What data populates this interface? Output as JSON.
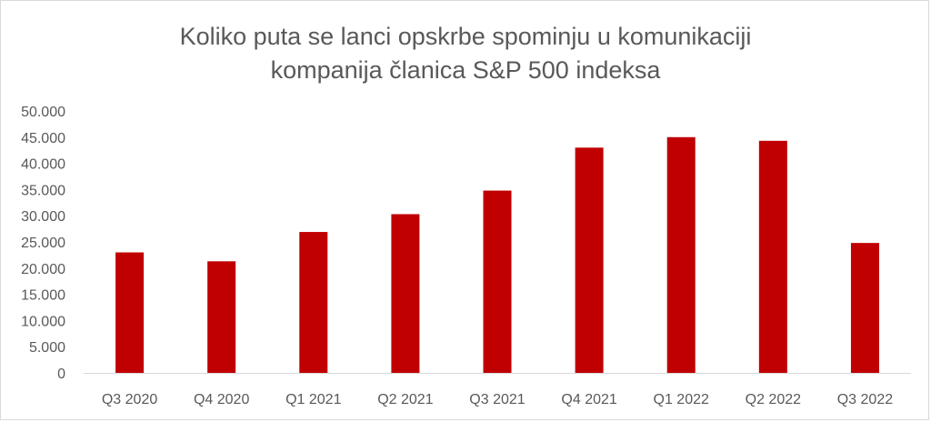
{
  "chart_data": {
    "type": "bar",
    "title_lines": [
      "Koliko puta se lanci opskrbe spominju u komunikaciji",
      "kompanija članica S&P 500 indeksa"
    ],
    "categories": [
      "Q3 2020",
      "Q4 2020",
      "Q1 2021",
      "Q2 2021",
      "Q3 2021",
      "Q4 2021",
      "Q1 2022",
      "Q2 2022",
      "Q3 2022"
    ],
    "values": [
      23000,
      21300,
      26900,
      30300,
      34800,
      43000,
      45000,
      44300,
      24800
    ],
    "y_ticks": [
      "0",
      "5.000",
      "10.000",
      "15.000",
      "20.000",
      "25.000",
      "30.000",
      "35.000",
      "40.000",
      "45.000",
      "50.000"
    ],
    "ylim": [
      0,
      50000
    ],
    "xlabel": "",
    "ylabel": "",
    "grid": false,
    "legend": "none",
    "bar_color": "#c00000"
  }
}
